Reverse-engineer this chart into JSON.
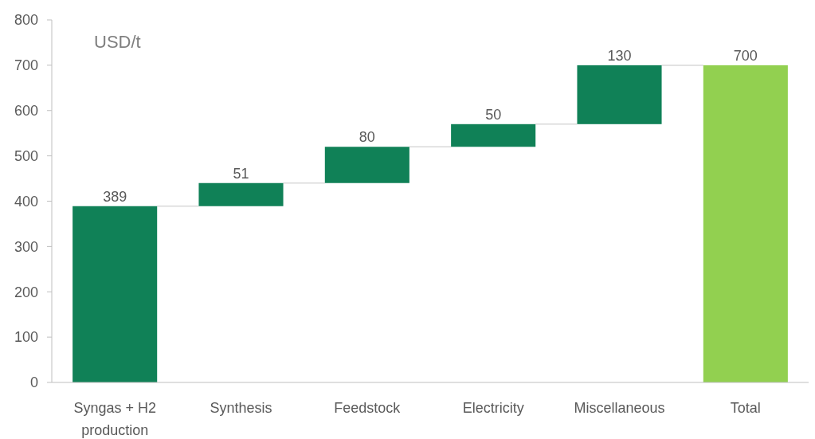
{
  "chart_data": {
    "type": "bar",
    "ylabel": "USD/t",
    "categories": [
      "Syngas + H2 production",
      "Synthesis",
      "Feedstock",
      "Electricity",
      "Miscellaneous",
      "Total"
    ],
    "values": [
      389,
      51,
      80,
      50,
      130,
      700
    ],
    "base": [
      0,
      389,
      440,
      520,
      570,
      0
    ],
    "colors": [
      "#108157",
      "#108157",
      "#108157",
      "#108157",
      "#108157",
      "#92d050"
    ],
    "ylim": [
      0,
      800
    ],
    "yticks": [
      0,
      100,
      200,
      300,
      400,
      500,
      600,
      700,
      800
    ],
    "data_labels": true
  }
}
